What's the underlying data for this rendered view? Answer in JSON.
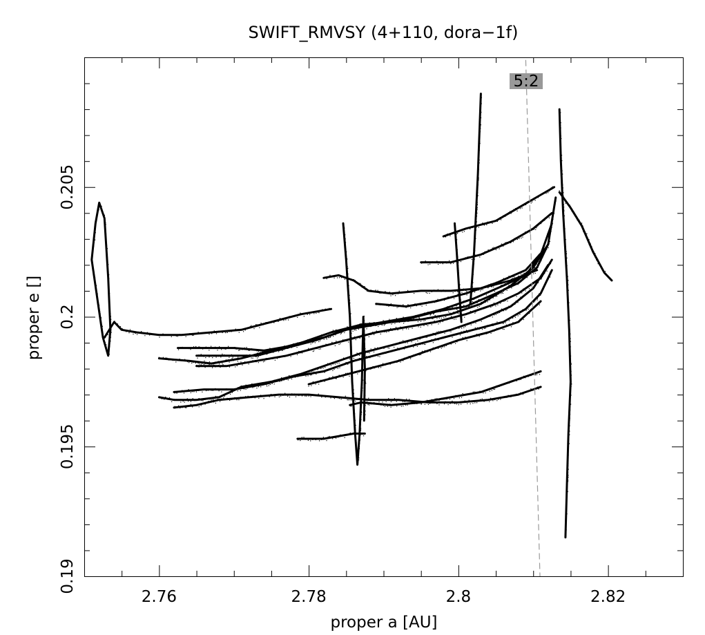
{
  "chart_data": {
    "type": "scatter",
    "title": "SWIFT_RMVSY (4+110, dora−1f)",
    "xlabel": "proper a [AU]",
    "ylabel": "proper e []",
    "xlim": [
      2.75,
      2.83
    ],
    "ylim": [
      0.19,
      0.21
    ],
    "x_ticks": [
      {
        "value": 2.76,
        "label": "2.76"
      },
      {
        "value": 2.78,
        "label": "2.78"
      },
      {
        "value": 2.8,
        "label": "2.8"
      },
      {
        "value": 2.82,
        "label": "2.82"
      }
    ],
    "y_ticks": [
      {
        "value": 0.19,
        "label": "0.19"
      },
      {
        "value": 0.195,
        "label": "0.195"
      },
      {
        "value": 0.2,
        "label": "0.2"
      },
      {
        "value": 0.205,
        "label": "0.205"
      }
    ],
    "grid": false,
    "colors": {
      "points": "#000000",
      "resonance_line": "#999999",
      "resonance_label_bg": "#999999"
    },
    "resonance": {
      "label": "5:2",
      "line": [
        [
          2.809,
          0.2099
        ],
        [
          2.8109,
          0.19
        ]
      ]
    },
    "tracks": [
      {
        "points": [
          [
            2.751,
            0.2022
          ],
          [
            2.7515,
            0.2036
          ],
          [
            2.752,
            0.2044
          ],
          [
            2.7527,
            0.2038
          ],
          [
            2.7532,
            0.2015
          ],
          [
            2.7535,
            0.1995
          ],
          [
            2.7532,
            0.1985
          ],
          [
            2.7525,
            0.1992
          ],
          [
            2.7518,
            0.2006
          ],
          [
            2.751,
            0.2022
          ]
        ]
      },
      {
        "points": [
          [
            2.7527,
            0.1992
          ],
          [
            2.754,
            0.1998
          ],
          [
            2.755,
            0.1995
          ],
          [
            2.757,
            0.1994
          ],
          [
            2.76,
            0.1993
          ],
          [
            2.763,
            0.1993
          ],
          [
            2.767,
            0.1994
          ],
          [
            2.771,
            0.1995
          ],
          [
            2.775,
            0.1998
          ],
          [
            2.779,
            0.2001
          ],
          [
            2.783,
            0.2003
          ]
        ]
      },
      {
        "points": [
          [
            2.76,
            0.1984
          ],
          [
            2.764,
            0.1983
          ],
          [
            2.767,
            0.1982
          ],
          [
            2.771,
            0.1984
          ],
          [
            2.775,
            0.1987
          ],
          [
            2.779,
            0.199
          ],
          [
            2.783,
            0.1994
          ],
          [
            2.787,
            0.1997
          ],
          [
            2.791,
            0.1998
          ],
          [
            2.795,
            0.1999
          ],
          [
            2.799,
            0.2001
          ],
          [
            2.803,
            0.2005
          ],
          [
            2.807,
            0.2012
          ],
          [
            2.81,
            0.2019
          ],
          [
            2.812,
            0.2028
          ],
          [
            2.813,
            0.2046
          ]
        ]
      },
      {
        "points": [
          [
            2.7625,
            0.1988
          ],
          [
            2.766,
            0.1988
          ],
          [
            2.77,
            0.1988
          ],
          [
            2.774,
            0.1987
          ],
          [
            2.778,
            0.1989
          ],
          [
            2.782,
            0.1992
          ],
          [
            2.786,
            0.1996
          ],
          [
            2.79,
            0.1998
          ],
          [
            2.794,
            0.2
          ],
          [
            2.798,
            0.2003
          ],
          [
            2.802,
            0.2007
          ],
          [
            2.806,
            0.2012
          ],
          [
            2.809,
            0.2016
          ],
          [
            2.811,
            0.2024
          ],
          [
            2.8125,
            0.2036
          ]
        ]
      },
      {
        "points": [
          [
            2.765,
            0.1985
          ],
          [
            2.769,
            0.1985
          ],
          [
            2.773,
            0.1985
          ],
          [
            2.777,
            0.1988
          ],
          [
            2.781,
            0.1991
          ],
          [
            2.785,
            0.1995
          ],
          [
            2.789,
            0.1997
          ],
          [
            2.793,
            0.1999
          ],
          [
            2.797,
            0.2002
          ],
          [
            2.801,
            0.2004
          ],
          [
            2.805,
            0.2009
          ],
          [
            2.808,
            0.2013
          ],
          [
            2.8105,
            0.2019
          ],
          [
            2.812,
            0.2028
          ]
        ]
      },
      {
        "points": [
          [
            2.765,
            0.1981
          ],
          [
            2.769,
            0.1981
          ],
          [
            2.773,
            0.1983
          ],
          [
            2.777,
            0.1985
          ],
          [
            2.781,
            0.1988
          ],
          [
            2.785,
            0.1991
          ],
          [
            2.789,
            0.1994
          ],
          [
            2.793,
            0.1996
          ],
          [
            2.797,
            0.1998
          ],
          [
            2.801,
            0.2001
          ],
          [
            2.805,
            0.2005
          ],
          [
            2.808,
            0.2009
          ],
          [
            2.811,
            0.2015
          ],
          [
            2.8125,
            0.2022
          ]
        ]
      },
      {
        "points": [
          [
            2.76,
            0.1969
          ],
          [
            2.762,
            0.1968
          ],
          [
            2.765,
            0.1968
          ],
          [
            2.768,
            0.1969
          ],
          [
            2.771,
            0.1973
          ],
          [
            2.775,
            0.1975
          ],
          [
            2.779,
            0.1978
          ],
          [
            2.783,
            0.1982
          ],
          [
            2.787,
            0.1986
          ],
          [
            2.791,
            0.1989
          ],
          [
            2.795,
            0.1992
          ],
          [
            2.799,
            0.1995
          ],
          [
            2.803,
            0.1999
          ],
          [
            2.807,
            0.2004
          ],
          [
            2.81,
            0.2011
          ],
          [
            2.812,
            0.202
          ]
        ]
      },
      {
        "points": [
          [
            2.762,
            0.1971
          ],
          [
            2.766,
            0.1972
          ],
          [
            2.77,
            0.1972
          ],
          [
            2.774,
            0.1974
          ],
          [
            2.778,
            0.1977
          ],
          [
            2.782,
            0.1979
          ],
          [
            2.786,
            0.1983
          ],
          [
            2.79,
            0.1986
          ],
          [
            2.794,
            0.1989
          ],
          [
            2.798,
            0.1992
          ],
          [
            2.802,
            0.1995
          ],
          [
            2.806,
            0.1998
          ],
          [
            2.809,
            0.2003
          ],
          [
            2.811,
            0.2009
          ],
          [
            2.8125,
            0.2018
          ]
        ]
      },
      {
        "points": [
          [
            2.762,
            0.1965
          ],
          [
            2.765,
            0.1966
          ],
          [
            2.768,
            0.1968
          ],
          [
            2.772,
            0.1969
          ],
          [
            2.776,
            0.197
          ],
          [
            2.78,
            0.197
          ],
          [
            2.784,
            0.1969
          ],
          [
            2.788,
            0.1968
          ],
          [
            2.792,
            0.1968
          ],
          [
            2.796,
            0.1967
          ],
          [
            2.8,
            0.1967
          ],
          [
            2.804,
            0.1968
          ],
          [
            2.808,
            0.197
          ],
          [
            2.811,
            0.1973
          ]
        ]
      },
      {
        "points": [
          [
            2.7785,
            0.1953
          ],
          [
            2.782,
            0.1953
          ],
          [
            2.786,
            0.1955
          ],
          [
            2.7875,
            0.1955
          ]
        ]
      },
      {
        "points": [
          [
            2.782,
            0.2015
          ],
          [
            2.784,
            0.2016
          ],
          [
            2.786,
            0.2014
          ],
          [
            2.788,
            0.201
          ],
          [
            2.791,
            0.2009
          ],
          [
            2.795,
            0.201
          ],
          [
            2.799,
            0.201
          ],
          [
            2.803,
            0.2011
          ],
          [
            2.807,
            0.2014
          ],
          [
            2.8105,
            0.2018
          ]
        ]
      },
      {
        "points": [
          [
            2.795,
            0.2021
          ],
          [
            2.799,
            0.2021
          ],
          [
            2.803,
            0.2024
          ],
          [
            2.807,
            0.2029
          ],
          [
            2.81,
            0.2034
          ],
          [
            2.8125,
            0.204
          ]
        ]
      },
      {
        "points": [
          [
            2.798,
            0.2031
          ],
          [
            2.801,
            0.2034
          ],
          [
            2.805,
            0.2037
          ],
          [
            2.808,
            0.2042
          ],
          [
            2.811,
            0.2047
          ],
          [
            2.8128,
            0.205
          ]
        ]
      },
      {
        "points": [
          [
            2.789,
            0.2005
          ],
          [
            2.793,
            0.2004
          ],
          [
            2.797,
            0.2006
          ],
          [
            2.801,
            0.2009
          ],
          [
            2.805,
            0.2013
          ],
          [
            2.809,
            0.2018
          ],
          [
            2.8115,
            0.2026
          ]
        ]
      },
      {
        "points": [
          [
            2.78,
            0.1974
          ],
          [
            2.784,
            0.1977
          ],
          [
            2.788,
            0.198
          ],
          [
            2.792,
            0.1983
          ],
          [
            2.796,
            0.1987
          ],
          [
            2.8,
            0.1991
          ],
          [
            2.804,
            0.1994
          ],
          [
            2.808,
            0.1998
          ],
          [
            2.811,
            0.2006
          ]
        ]
      },
      {
        "points": [
          [
            2.7855,
            0.1966
          ],
          [
            2.787,
            0.1967
          ],
          [
            2.791,
            0.1966
          ],
          [
            2.795,
            0.1967
          ],
          [
            2.799,
            0.1969
          ],
          [
            2.803,
            0.1971
          ],
          [
            2.807,
            0.1975
          ],
          [
            2.811,
            0.1979
          ]
        ]
      },
      {
        "points": [
          [
            2.803,
            0.2086
          ],
          [
            2.8026,
            0.2055
          ],
          [
            2.8021,
            0.2025
          ],
          [
            2.8016,
            0.2005
          ]
        ]
      },
      {
        "points": [
          [
            2.7846,
            0.2036
          ],
          [
            2.785,
            0.2022
          ],
          [
            2.7855,
            0.2
          ],
          [
            2.7858,
            0.1975
          ],
          [
            2.7862,
            0.1955
          ],
          [
            2.7865,
            0.1943
          ],
          [
            2.7868,
            0.1955
          ],
          [
            2.7871,
            0.1975
          ],
          [
            2.7873,
            0.2
          ],
          [
            2.7875,
            0.198
          ],
          [
            2.7874,
            0.196
          ]
        ]
      },
      {
        "points": [
          [
            2.7995,
            0.2036
          ],
          [
            2.7998,
            0.2024
          ],
          [
            2.8001,
            0.201
          ],
          [
            2.8004,
            0.1998
          ]
        ]
      },
      {
        "points": [
          [
            2.8135,
            0.208
          ],
          [
            2.8137,
            0.206
          ],
          [
            2.814,
            0.204
          ],
          [
            2.8145,
            0.2015
          ],
          [
            2.8148,
            0.1995
          ],
          [
            2.815,
            0.1975
          ],
          [
            2.8147,
            0.1955
          ],
          [
            2.8145,
            0.1935
          ],
          [
            2.8143,
            0.1915
          ]
        ]
      },
      {
        "points": [
          [
            2.8135,
            0.2048
          ],
          [
            2.815,
            0.2042
          ],
          [
            2.8165,
            0.2035
          ],
          [
            2.818,
            0.2025
          ],
          [
            2.8195,
            0.2017
          ],
          [
            2.8205,
            0.2014
          ]
        ]
      }
    ]
  }
}
